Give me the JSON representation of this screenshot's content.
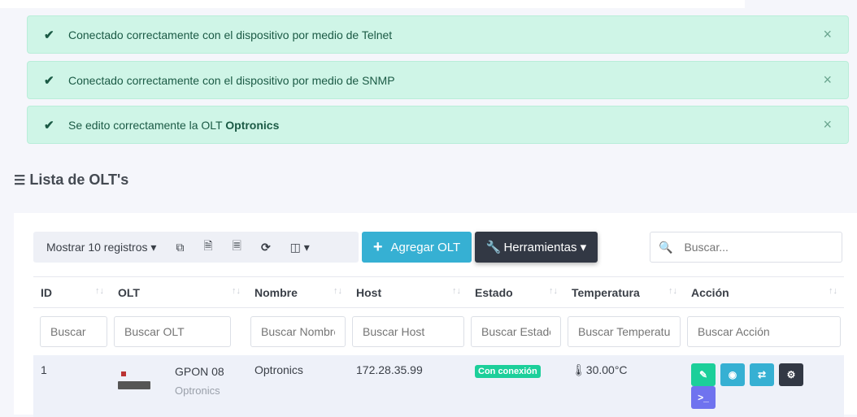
{
  "alerts": [
    {
      "text": "Conectado correctamente con el dispositivo por medio de Telnet",
      "bold": ""
    },
    {
      "text": "Conectado correctamente con el dispositivo por medio de SNMP",
      "bold": ""
    },
    {
      "text": "Se edito correctamente la OLT ",
      "bold": "Optronics"
    }
  ],
  "close_icon": "×",
  "page_title": "Lista de OLT's",
  "toolbar": {
    "show_label": "Mostrar 10 registros",
    "add_label": "Agregar OLT",
    "tools_label": "Herramientas",
    "search_placeholder": "Buscar..."
  },
  "columns": [
    "ID",
    "OLT",
    "Nombre",
    "Host",
    "Estado",
    "Temperatura",
    "Acción"
  ],
  "filters": [
    "Buscar",
    "Buscar OLT",
    "Buscar Nombre",
    "Buscar Host",
    "Buscar Estado",
    "Buscar Temperatura",
    "Buscar Acción"
  ],
  "rows": [
    {
      "id": "1",
      "olt_name": "GPON 08",
      "olt_brand": "Optronics",
      "nombre": "Optronics",
      "host": "172.28.35.99",
      "estado": "Con conexión",
      "temperatura": "30.00°C"
    }
  ],
  "colors": {
    "alert_bg": "#cff5e7",
    "info": "#36b0d3",
    "dark": "#323844",
    "success": "#1ccf9a",
    "purple": "#6f73ef"
  }
}
